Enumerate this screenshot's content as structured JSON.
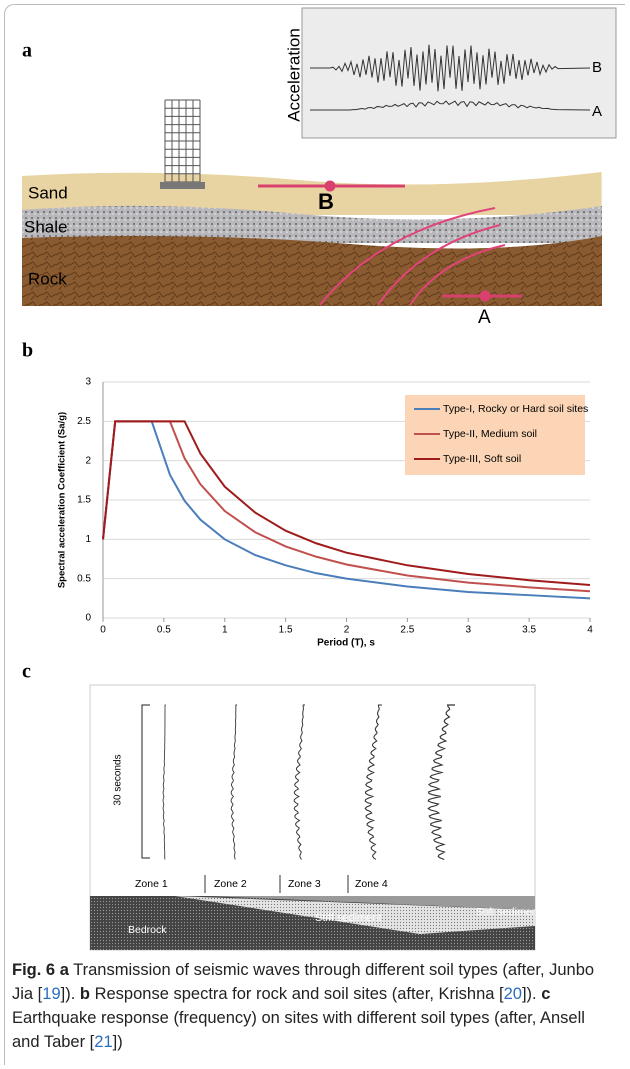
{
  "panel_a": {
    "label": "a",
    "inset_axis": "Acceleration",
    "inset_B": "B",
    "inset_A": "A",
    "layers": [
      "Sand",
      "Shale",
      "Rock"
    ],
    "point_B": "B",
    "point_A": "A"
  },
  "chart_data": {
    "type": "line",
    "label": "b",
    "y_label": "Spectral acceleration Coefficient (Sa/g)",
    "x_label": "Period (T), s",
    "x": [
      0,
      0.1,
      0.4,
      0.55,
      0.67,
      0.8,
      1,
      1.25,
      1.5,
      1.75,
      2,
      2.5,
      3,
      3.5,
      4
    ],
    "series": [
      {
        "name": "Type-I, Rocky or Hard soil sites",
        "color": "#4a7ebb",
        "values": [
          1,
          2.5,
          2.5,
          1.82,
          1.49,
          1.25,
          1,
          0.8,
          0.67,
          0.57,
          0.5,
          0.4,
          0.33,
          0.29,
          0.25
        ]
      },
      {
        "name": "Type-II, Medium soil",
        "color": "#c0504d",
        "values": [
          1,
          2.5,
          2.5,
          2.5,
          2.03,
          1.7,
          1.36,
          1.09,
          0.91,
          0.78,
          0.68,
          0.54,
          0.45,
          0.39,
          0.34
        ]
      },
      {
        "name": "Type-III, Soft soil",
        "color": "#a01c1c",
        "values": [
          1,
          2.5,
          2.5,
          2.5,
          2.5,
          2.09,
          1.67,
          1.34,
          1.11,
          0.95,
          0.83,
          0.67,
          0.56,
          0.48,
          0.42
        ]
      }
    ],
    "xlim": [
      0,
      4
    ],
    "ylim": [
      0,
      3
    ],
    "xticks": [
      0,
      0.5,
      1,
      1.5,
      2,
      2.5,
      3,
      3.5,
      4
    ],
    "yticks": [
      0,
      0.5,
      1,
      1.5,
      2,
      2.5,
      3
    ],
    "grid": true,
    "legend_bg": "#fbd5b5"
  },
  "panel_c": {
    "label": "c",
    "duration": "30 seconds",
    "zones": [
      "Zone 1",
      "Zone 2",
      "Zone 3",
      "Zone 4"
    ],
    "layers": [
      "Bedrock",
      "Stiff sediment",
      "Soft sediment"
    ]
  },
  "caption": {
    "parts": [
      "Fig. 6",
      "a",
      "Transmission of seismic waves through different soil types (after, Junbo Jia [",
      "19",
      "]).",
      "b",
      "Response spectra for rock and soil sites (after, Krishna [",
      "20",
      "]).",
      "c",
      "Earthquake response (frequency) on sites with different soil types (after, Ansell and Taber [",
      "21",
      "])"
    ]
  }
}
